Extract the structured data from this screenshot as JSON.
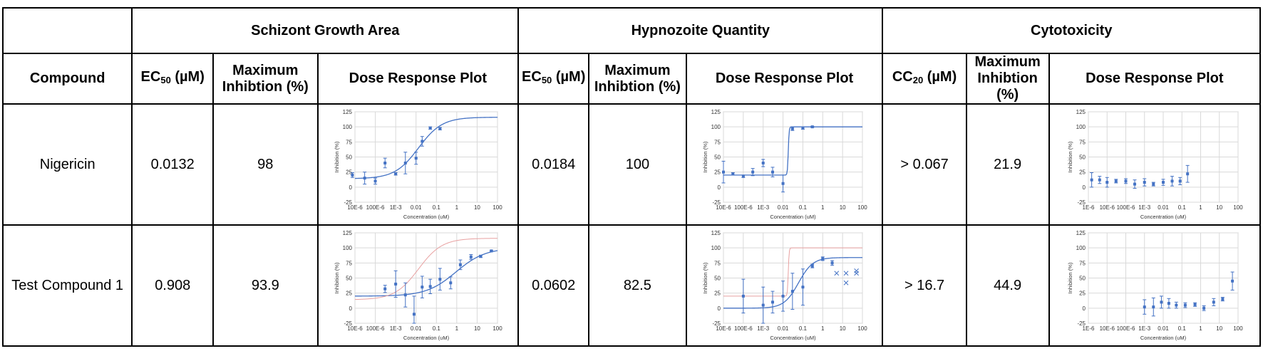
{
  "groups": {
    "schizont": "Schizont Growth Area",
    "hypnozoite": "Hypnozoite Quantity",
    "cytotoxicity": "Cytotoxicity"
  },
  "headers": {
    "compound": "Compound",
    "ec50_main": "EC",
    "ec50_sub": "50",
    "cc20_main": "CC",
    "cc20_sub": "20",
    "unit": "(µM)",
    "max_inhibition_line1": "Maximum",
    "max_inhibition_line2": "Inhibtion (%)",
    "dose_response": "Dose Response Plot"
  },
  "rows": [
    {
      "compound": "Nigericin",
      "schizont_ec50": "0.0132",
      "schizont_max": "98",
      "hypno_ec50": "0.0184",
      "hypno_max": "100",
      "cyto_cc20": "> 0.067",
      "cyto_max": "21.9"
    },
    {
      "compound": "Test Compound 1",
      "schizont_ec50": "0.908",
      "schizont_max": "93.9",
      "hypno_ec50": "0.0602",
      "hypno_max": "82.5",
      "cyto_cc20": "> 16.7",
      "cyto_max": "44.9"
    }
  ],
  "chart_data": [
    {
      "id": "schizont-nigericin",
      "type": "scatter",
      "xlabel": "Concentration (uM)",
      "ylabel": "Inhibition (%)",
      "xscale": "log",
      "xlim": [
        1e-05,
        100
      ],
      "ylim": [
        -25,
        125
      ],
      "xticks": [
        "10E-6",
        "100E-6",
        "1E-3",
        "0.01",
        "0.1",
        "1",
        "10",
        "100"
      ],
      "yticks": [
        "-25",
        "0",
        "25",
        "50",
        "75",
        "100",
        "125"
      ],
      "grid": true,
      "series": [
        {
          "role": "points",
          "color": "#4472c4",
          "points": [
            [
              7.5e-06,
              20,
              4
            ],
            [
              3e-05,
              15,
              10
            ],
            [
              0.0001,
              10,
              5
            ],
            [
              0.0003,
              40,
              8
            ],
            [
              0.001,
              22,
              2
            ],
            [
              0.003,
              40,
              18
            ],
            [
              0.01,
              48,
              10
            ],
            [
              0.02,
              76,
              8
            ],
            [
              0.05,
              98,
              2
            ],
            [
              0.15,
              97,
              2
            ]
          ]
        },
        {
          "role": "fit",
          "color": "#4472c4",
          "curve": {
            "bottom": 14,
            "top": 116,
            "ec50": 0.0132,
            "hill": 0.75
          }
        }
      ]
    },
    {
      "id": "hypno-nigericin",
      "type": "scatter",
      "xlabel": "Concentration (uM)",
      "ylabel": "Inhibition (%)",
      "xscale": "log",
      "xlim": [
        1e-05,
        100
      ],
      "ylim": [
        -25,
        125
      ],
      "xticks": [
        "10E-6",
        "100E-6",
        "1E-3",
        "0.01",
        "0.1",
        "1",
        "10",
        "100"
      ],
      "yticks": [
        "-25",
        "0",
        "25",
        "50",
        "75",
        "100",
        "125"
      ],
      "grid": true,
      "series": [
        {
          "role": "points",
          "color": "#4472c4",
          "points": [
            [
              1e-05,
              25,
              18
            ],
            [
              3e-05,
              22,
              2
            ],
            [
              0.0001,
              18,
              2
            ],
            [
              0.0003,
              25,
              6
            ],
            [
              0.001,
              40,
              6
            ],
            [
              0.003,
              25,
              8
            ],
            [
              0.01,
              6,
              14
            ],
            [
              0.03,
              97,
              3
            ],
            [
              0.1,
              98,
              2
            ],
            [
              0.3,
              100,
              1
            ]
          ]
        },
        {
          "role": "fit",
          "color": "#4472c4",
          "curve": {
            "bottom": 20,
            "top": 100,
            "ec50": 0.0184,
            "hill": 20
          }
        }
      ]
    },
    {
      "id": "cyto-nigericin",
      "type": "scatter",
      "xlabel": "Concentration (uM)",
      "ylabel": "Inhibition (%)",
      "xscale": "log",
      "xlim": [
        1e-06,
        100
      ],
      "ylim": [
        -25,
        125
      ],
      "xticks": [
        "1E-6",
        "10E-6",
        "100E-6",
        "1E-3",
        "0.01",
        "0.1",
        "1",
        "10",
        "100"
      ],
      "yticks": [
        "-25",
        "0",
        "25",
        "50",
        "75",
        "100",
        "125"
      ],
      "grid": true,
      "series": [
        {
          "role": "points",
          "color": "#4472c4",
          "points": [
            [
              1.5e-06,
              12,
              12
            ],
            [
              4e-06,
              12,
              6
            ],
            [
              1e-05,
              8,
              8
            ],
            [
              3e-05,
              10,
              3
            ],
            [
              0.0001,
              10,
              4
            ],
            [
              0.0003,
              5,
              7
            ],
            [
              0.001,
              8,
              6
            ],
            [
              0.003,
              5,
              3
            ],
            [
              0.01,
              8,
              5
            ],
            [
              0.03,
              10,
              8
            ],
            [
              0.08,
              10,
              6
            ],
            [
              0.2,
              22,
              14
            ]
          ]
        }
      ]
    },
    {
      "id": "schizont-test1",
      "type": "scatter",
      "xlabel": "Concentration (uM)",
      "ylabel": "Inhibition (%)",
      "xscale": "log",
      "xlim": [
        1e-05,
        100
      ],
      "ylim": [
        -25,
        125
      ],
      "xticks": [
        "10E-6",
        "100E-6",
        "1E-3",
        "0.01",
        "0.1",
        "1",
        "10",
        "100"
      ],
      "yticks": [
        "-25",
        "0",
        "25",
        "50",
        "75",
        "100",
        "125"
      ],
      "grid": true,
      "series": [
        {
          "role": "points",
          "color": "#4472c4",
          "points": [
            [
              0.0003,
              32,
              6
            ],
            [
              0.001,
              40,
              22
            ],
            [
              0.003,
              22,
              20
            ],
            [
              0.008,
              -10,
              30
            ],
            [
              0.02,
              35,
              18
            ],
            [
              0.05,
              36,
              12
            ],
            [
              0.15,
              48,
              18
            ],
            [
              0.5,
              42,
              10
            ],
            [
              1.5,
              72,
              8
            ],
            [
              5,
              85,
              4
            ],
            [
              15,
              86,
              2
            ],
            [
              50,
              95,
              1
            ]
          ]
        },
        {
          "role": "fit",
          "color": "#4472c4",
          "curve": {
            "bottom": 20,
            "top": 100,
            "ec50": 0.908,
            "hill": 0.6
          }
        },
        {
          "role": "reference",
          "color": "#e8a0a0",
          "curve": {
            "bottom": 14,
            "top": 116,
            "ec50": 0.0132,
            "hill": 0.75
          }
        }
      ]
    },
    {
      "id": "hypno-test1",
      "type": "scatter",
      "xlabel": "Concentration (uM)",
      "ylabel": "Inhibition (%)",
      "xscale": "log",
      "xlim": [
        1e-05,
        100
      ],
      "ylim": [
        -25,
        125
      ],
      "xticks": [
        "10E-6",
        "100E-6",
        "1E-3",
        "0.01",
        "0.1",
        "1",
        "10",
        "100"
      ],
      "yticks": [
        "-25",
        "0",
        "25",
        "50",
        "75",
        "100",
        "125"
      ],
      "grid": true,
      "series": [
        {
          "role": "points",
          "color": "#4472c4",
          "points": [
            [
              0.0001,
              20,
              28
            ],
            [
              0.001,
              5,
              30
            ],
            [
              0.003,
              10,
              18
            ],
            [
              0.01,
              20,
              25
            ],
            [
              0.03,
              28,
              30
            ],
            [
              0.1,
              35,
              30
            ],
            [
              0.3,
              70,
              3
            ],
            [
              1,
              82,
              3
            ],
            [
              3,
              75,
              4
            ]
          ]
        },
        {
          "role": "excluded",
          "color": "#4472c4",
          "points": [
            [
              5,
              58
            ],
            [
              15,
              58
            ],
            [
              15,
              42
            ],
            [
              50,
              62
            ],
            [
              50,
              58
            ]
          ]
        },
        {
          "role": "fit",
          "color": "#4472c4",
          "curve": {
            "bottom": 0,
            "top": 84,
            "ec50": 0.0602,
            "hill": 1.2
          }
        },
        {
          "role": "reference",
          "color": "#e8a0a0",
          "curve": {
            "bottom": 20,
            "top": 100,
            "ec50": 0.0184,
            "hill": 20
          }
        }
      ]
    },
    {
      "id": "cyto-test1",
      "type": "scatter",
      "xlabel": "Concentration (uM)",
      "ylabel": "Inhibition (%)",
      "xscale": "log",
      "xlim": [
        1e-06,
        100
      ],
      "ylim": [
        -25,
        125
      ],
      "xticks": [
        "1E-6",
        "10E-6",
        "100E-6",
        "1E-3",
        "0.01",
        "0.1",
        "1",
        "10",
        "100"
      ],
      "yticks": [
        "-25",
        "0",
        "25",
        "50",
        "75",
        "100",
        "125"
      ],
      "grid": true,
      "series": [
        {
          "role": "points",
          "color": "#4472c4",
          "points": [
            [
              0.001,
              2,
              12
            ],
            [
              0.003,
              2,
              15
            ],
            [
              0.008,
              10,
              10
            ],
            [
              0.02,
              8,
              8
            ],
            [
              0.05,
              5,
              5
            ],
            [
              0.15,
              5,
              4
            ],
            [
              0.5,
              6,
              3
            ],
            [
              1.5,
              0,
              4
            ],
            [
              5,
              10,
              6
            ],
            [
              15,
              15,
              3
            ],
            [
              50,
              45,
              15
            ]
          ]
        }
      ]
    }
  ]
}
